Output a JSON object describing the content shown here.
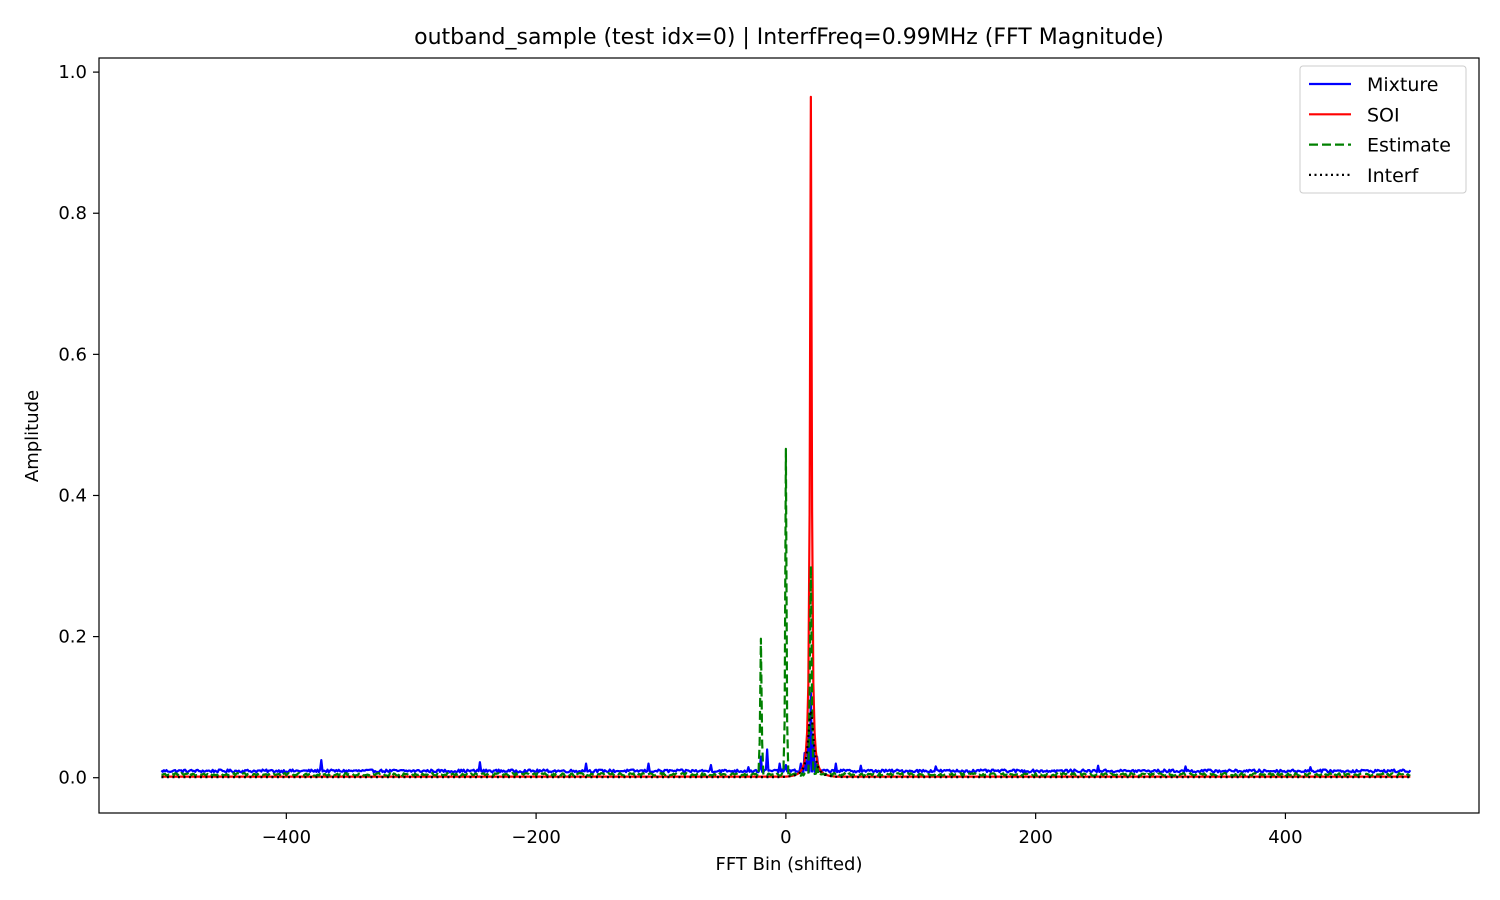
{
  "chart_data": {
    "type": "line",
    "title": "outband_sample (test idx=0) | InterfFreq=0.99MHz (FFT Magnitude)",
    "xlabel": "FFT Bin (shifted)",
    "ylabel": "Amplitude",
    "xlim": [
      -550,
      555
    ],
    "ylim": [
      -0.05,
      1.02
    ],
    "xticks": [
      -400,
      -200,
      0,
      200,
      400
    ],
    "xtick_labels": [
      "−400",
      "−200",
      "0",
      "200",
      "400"
    ],
    "yticks": [
      0.0,
      0.2,
      0.4,
      0.6,
      0.8,
      1.0
    ],
    "ytick_labels": [
      "0.0",
      "0.2",
      "0.4",
      "0.6",
      "0.8",
      "1.0"
    ],
    "grid": false,
    "legend_position": "top-right",
    "x_range": [
      -500,
      500
    ],
    "series": [
      {
        "name": "Mixture",
        "color": "#0000ff",
        "style": "solid",
        "baseline": 0.009,
        "noise": 0.004,
        "points": [
          [
            -372,
            0.025
          ],
          [
            -245,
            0.022
          ],
          [
            -160,
            0.02
          ],
          [
            -110,
            0.02
          ],
          [
            -60,
            0.018
          ],
          [
            -30,
            0.015
          ],
          [
            -20,
            0.03
          ],
          [
            -15,
            0.04
          ],
          [
            -5,
            0.02
          ],
          [
            0,
            0.018
          ],
          [
            12,
            0.02
          ],
          [
            15,
            0.035
          ],
          [
            18,
            0.06
          ],
          [
            20,
            0.12
          ],
          [
            22,
            0.05
          ],
          [
            25,
            0.03
          ],
          [
            40,
            0.02
          ],
          [
            60,
            0.017
          ],
          [
            120,
            0.016
          ],
          [
            250,
            0.017
          ],
          [
            320,
            0.016
          ],
          [
            420,
            0.015
          ]
        ]
      },
      {
        "name": "SOI",
        "color": "#ff0000",
        "style": "solid",
        "baseline": 0.0015,
        "noise": 0.0,
        "peak": {
          "center": 20,
          "amplitude": 0.965,
          "width": 0.8
        }
      },
      {
        "name": "Estimate",
        "color": "#008000",
        "style": "dashed",
        "baseline": 0.004,
        "noise": 0.004,
        "points": [
          [
            -20,
            0.197
          ],
          [
            -19,
            0.05
          ],
          [
            -21,
            0.05
          ],
          [
            0,
            0.466
          ],
          [
            1,
            0.08
          ],
          [
            -1,
            0.08
          ],
          [
            20,
            0.3
          ],
          [
            19,
            0.12
          ],
          [
            21,
            0.1
          ],
          [
            25,
            0.02
          ]
        ]
      },
      {
        "name": "Interf",
        "color": "#000000",
        "style": "dotted",
        "baseline": 0.0008,
        "noise": 0.0,
        "peak": {
          "center": 20,
          "amplitude": 0.095,
          "width": 2.5
        }
      }
    ]
  }
}
